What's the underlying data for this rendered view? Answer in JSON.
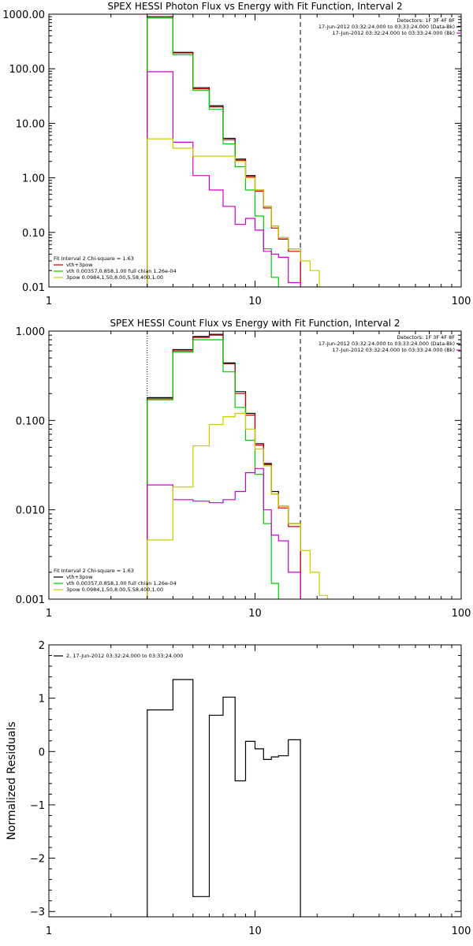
{
  "chart_data": [
    {
      "type": "line",
      "title": "SPEX HESSI Photon Flux vs Energy with Fit Function, Interval 2",
      "xscale": "log",
      "yscale": "log",
      "xlim": [
        1,
        100
      ],
      "ylim": [
        0.01,
        1000
      ],
      "xticks": [
        1,
        10,
        100
      ],
      "xtick_labels": [
        "1",
        "10",
        "100"
      ],
      "yticks": [
        0.01,
        0.1,
        1,
        10,
        100,
        1000
      ],
      "ytick_labels": [
        "0.01",
        "0.10",
        "1.00",
        "10.00",
        "100.00",
        "1000.00"
      ],
      "info": [
        "Detectors: 1F 3F 4F 8F",
        "17-Jun-2012 03:32:24.000 to 03:33:24.000 (Data-Bk)",
        "17-Jun-2012 03:32:24.000 to 03:33:24.000 (Bk)"
      ],
      "info_colors": [
        "",
        "#000000",
        "#cc00cc"
      ],
      "legend": [
        "Fit Interval 2   Chi-square = 1.63",
        "vth+3pow",
        "vth 0.00357,0.858,1.00  full chian 1.26e-04",
        "3pow 0.0984,1.50,8.00,5.58,400,1.00"
      ],
      "legend_colors": [
        "",
        "#cc0000",
        "#00cc00",
        "#cccc00"
      ],
      "vlines": [
        {
          "x": 3.0,
          "style": "dotted",
          "color": "#000000"
        },
        {
          "x": 16.6,
          "style": "dashed",
          "color": "#000000"
        }
      ],
      "edges": [
        3.0,
        4.0,
        5.0,
        6.0,
        7.0,
        8.0,
        9.0,
        10.0,
        11.0,
        12.0,
        13.0,
        14.5,
        16.6,
        18.5,
        20.5
      ],
      "series": [
        {
          "color": "#000000",
          "values": [
            900,
            200,
            45,
            21,
            5.3,
            2.2,
            1.1,
            0.6,
            0.3,
            0.13,
            0.08,
            0.05,
            null,
            null
          ]
        },
        {
          "color": "#cc0000",
          "values": [
            890,
            195,
            43,
            20,
            5.0,
            2.1,
            1.05,
            0.57,
            0.28,
            0.12,
            0.075,
            0.045,
            null,
            null
          ]
        },
        {
          "color": "#00cc00",
          "values": [
            850,
            180,
            40,
            18,
            4.2,
            1.6,
            0.6,
            0.2,
            0.05,
            0.015,
            null,
            null,
            null,
            null
          ]
        },
        {
          "color": "#cc00cc",
          "values": [
            88,
            4.5,
            1.1,
            0.6,
            0.3,
            0.14,
            0.18,
            0.11,
            0.045,
            0.04,
            0.035,
            0.012,
            null,
            null
          ]
        },
        {
          "color": "#cccc00",
          "values": [
            5.2,
            3.5,
            2.5,
            2.5,
            2.5,
            2.0,
            1.0,
            0.6,
            0.3,
            0.13,
            0.08,
            0.05,
            0.03,
            0.02
          ]
        }
      ]
    },
    {
      "type": "line",
      "title": "SPEX HESSI Count Flux vs Energy with Fit Function, Interval 2",
      "xscale": "log",
      "yscale": "log",
      "xlim": [
        1,
        100
      ],
      "ylim": [
        0.001,
        1
      ],
      "xticks": [
        1,
        10,
        100
      ],
      "xtick_labels": [
        "1",
        "10",
        "100"
      ],
      "yticks": [
        0.001,
        0.01,
        0.1,
        1
      ],
      "ytick_labels": [
        "0.001",
        "0.010",
        "0.100",
        "1.000"
      ],
      "info": [
        "Detectors: 1F 3F 4F 8F",
        "17-Jun-2012 03:32:24.000 to 03:33:24.000 (Data-Bk)",
        "17-Jun-2012 03:32:24.000 to 03:33:24.000 (Bk)"
      ],
      "info_colors": [
        "",
        "#000000",
        "#cc00cc"
      ],
      "legend": [
        "Fit Interval 2   Chi-square = 1.63",
        "vth+3pow",
        "vth 0.00357,0.858,1.00  full chian 1.26e-04",
        "3pow 0.0984,1.50,8.00,5.58,400,1.00"
      ],
      "legend_colors": [
        "",
        "#000000",
        "#00cc00",
        "#cccc00"
      ],
      "vlines": [
        {
          "x": 3.0,
          "style": "dotted",
          "color": "#000000"
        },
        {
          "x": 16.6,
          "style": "dashed",
          "color": "#000000"
        }
      ],
      "edges": [
        3.0,
        4.0,
        5.0,
        6.0,
        7.0,
        8.0,
        9.0,
        10.0,
        11.0,
        12.0,
        13.0,
        14.5,
        16.6,
        18.5,
        20.5,
        22.5
      ],
      "series": [
        {
          "color": "#000000",
          "values": [
            0.18,
            0.62,
            0.87,
            0.92,
            0.44,
            0.21,
            0.12,
            0.055,
            0.033,
            0.016,
            0.011,
            0.007,
            null,
            null,
            null
          ]
        },
        {
          "color": "#cc0000",
          "values": [
            0.175,
            0.6,
            0.85,
            0.9,
            0.43,
            0.2,
            0.115,
            0.053,
            0.032,
            0.015,
            0.0105,
            0.0065,
            null,
            null,
            null
          ]
        },
        {
          "color": "#00cc00",
          "values": [
            0.17,
            0.58,
            0.8,
            0.8,
            0.35,
            0.14,
            0.06,
            0.025,
            0.007,
            0.0015,
            null,
            null,
            null,
            null,
            null
          ]
        },
        {
          "color": "#cc00cc",
          "values": [
            0.019,
            0.013,
            0.0125,
            0.012,
            0.013,
            0.016,
            0.026,
            0.029,
            0.01,
            0.0052,
            0.0045,
            0.002,
            null,
            null,
            null
          ]
        },
        {
          "color": "#cccc00",
          "values": [
            0.0046,
            0.018,
            0.052,
            0.09,
            0.11,
            0.12,
            0.08,
            0.048,
            0.031,
            0.015,
            0.011,
            0.007,
            0.0035,
            0.002,
            0.0011
          ]
        }
      ]
    },
    {
      "type": "line",
      "title": "",
      "ylabel": "Normalized Residuals",
      "xscale": "log",
      "yscale": "linear",
      "xlim": [
        1,
        100
      ],
      "ylim": [
        -3.1,
        2
      ],
      "xticks": [
        1,
        10,
        100
      ],
      "xtick_labels": [
        "1",
        "10",
        "100"
      ],
      "yticks": [
        -3,
        -2,
        -1,
        0,
        1,
        2
      ],
      "ytick_labels": [
        "−3",
        "−2",
        "−1",
        "0",
        "1",
        "2"
      ],
      "legend": [
        "2, 17-Jun-2012 03:32:24.000 to 03:33:24.000"
      ],
      "legend_colors": [
        "#000000"
      ],
      "edges": [
        3.0,
        4.0,
        5.0,
        6.0,
        7.0,
        8.0,
        9.0,
        10.0,
        11.0,
        12.0,
        13.0,
        14.5,
        16.6
      ],
      "series": [
        {
          "color": "#000000",
          "values": [
            0.78,
            1.35,
            -2.72,
            0.68,
            1.02,
            -0.55,
            0.19,
            0.05,
            -0.15,
            -0.1,
            -0.08,
            0.22
          ]
        }
      ]
    }
  ]
}
